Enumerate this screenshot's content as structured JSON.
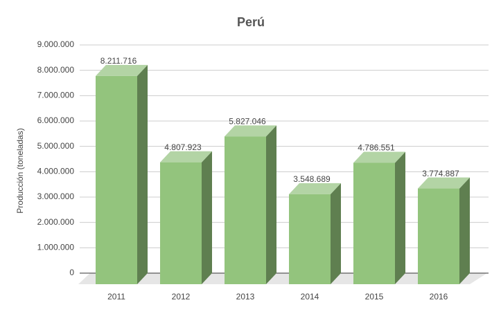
{
  "chart_data": {
    "type": "bar3d",
    "title": "Perú",
    "y_label": "Producción (toneladas)",
    "categories": [
      "2011",
      "2012",
      "2013",
      "2014",
      "2015",
      "2016"
    ],
    "values": [
      8211716,
      4807923,
      5827046,
      3548689,
      4786551,
      3774887
    ],
    "value_labels": [
      "8.211.716",
      "4.807.923",
      "5.827.046",
      "3.548.689",
      "4.786.551",
      "3.774.887"
    ],
    "color": "#93c47d",
    "ylim": [
      0,
      9000000
    ],
    "yticks": [
      {
        "value": 0,
        "label": "0"
      },
      {
        "value": 1000000,
        "label": "1.000.000"
      },
      {
        "value": 2000000,
        "label": "2.000.000"
      },
      {
        "value": 3000000,
        "label": "3.000.000"
      },
      {
        "value": 4000000,
        "label": "4.000.000"
      },
      {
        "value": 5000000,
        "label": "5.000.000"
      },
      {
        "value": 6000000,
        "label": "6.000.000"
      },
      {
        "value": 7000000,
        "label": "7.000.000"
      },
      {
        "value": 8000000,
        "label": "8.000.000"
      },
      {
        "value": 9000000,
        "label": "9.000.000"
      }
    ],
    "grid": true
  }
}
